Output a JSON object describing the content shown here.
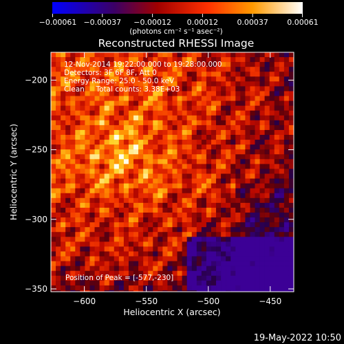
{
  "chart_data": {
    "type": "heatmap",
    "title": "Reconstructed RHESSI Image",
    "xlabel": "Heliocentric X (arcsec)",
    "ylabel": "Heliocentric Y (arcsec)",
    "xlim": [
      -627,
      -431
    ],
    "ylim": [
      -352,
      -180
    ],
    "x_ticks": [
      -600,
      -550,
      -500,
      -450
    ],
    "x_tick_labels": [
      "−600",
      "−550",
      "−500",
      "−450"
    ],
    "y_ticks": [
      -200,
      -250,
      -300,
      -350
    ],
    "y_tick_labels": [
      "−200",
      "−250",
      "−300",
      "−350"
    ],
    "colorbar": {
      "min": -0.00061,
      "max": 0.00061,
      "tick_labels": [
        "−0.00061",
        "−0.00037",
        "−0.00012",
        "0.00012",
        "0.00037",
        "0.00061"
      ],
      "units": "(photons cm⁻² s⁻¹ asec⁻²)",
      "colors": [
        "#0000ff",
        "#3c0064",
        "#a00000",
        "#ff3000",
        "#ff9a00",
        "#ffffff"
      ]
    },
    "annotations": [
      "12-Nov-2014 19:22:00.000 to 19:28:00.000",
      "Detectors: 3F 6F 8F, Att 0",
      "Energy Range: 25.0 - 50.0 keV",
      "Clean     Total counts: 3.38E+03"
    ],
    "peak_label": "Position of Peak = [-577,-230]",
    "peak": [
      -577,
      -230
    ]
  },
  "timestamp": "19-May-2022 10:50"
}
